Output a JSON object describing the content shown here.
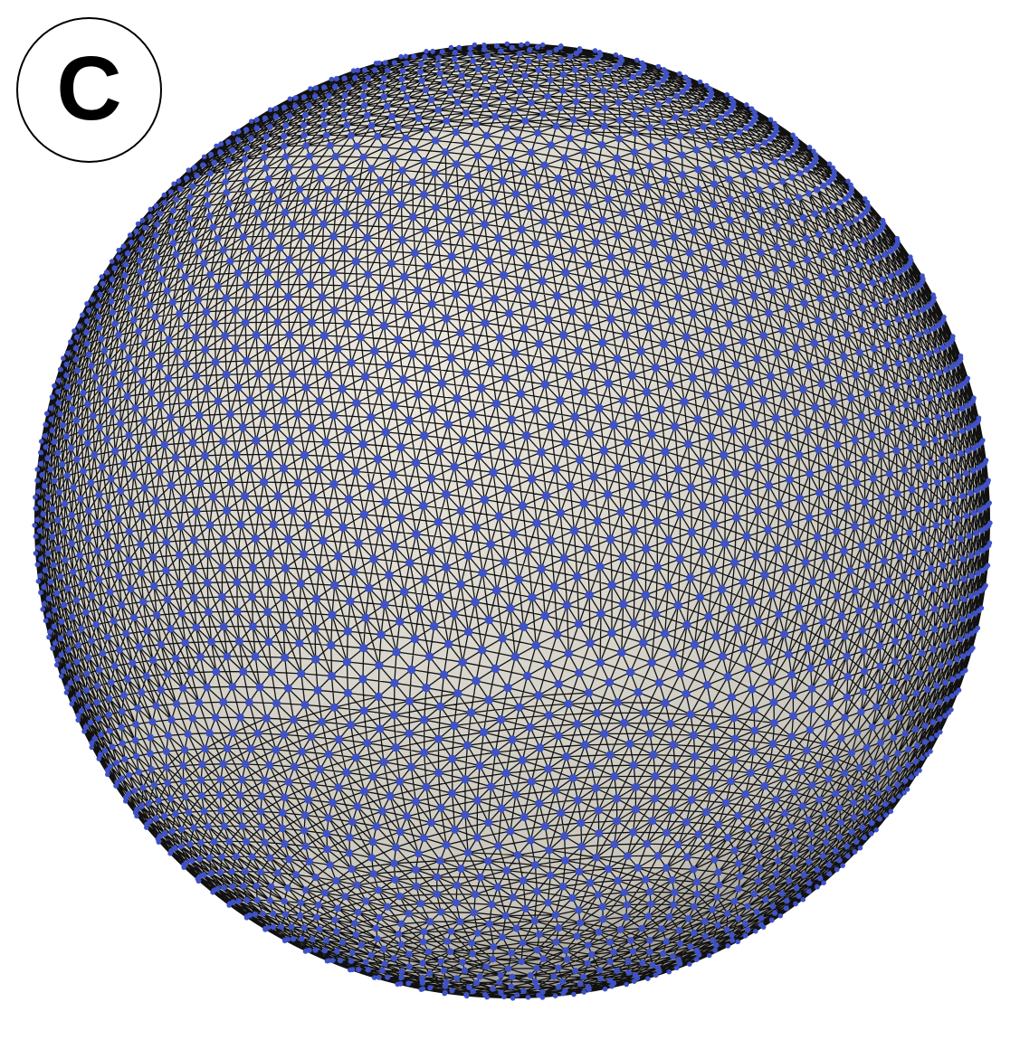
{
  "panel": {
    "label": "C"
  },
  "figure": {
    "kind": "triangulated sphere mesh",
    "colors": {
      "surface_light": "#eeeae1",
      "surface_mid": "#c9c6bd",
      "surface_dark": "#6a6965",
      "edge": "#111111",
      "vertex": "#3f52c6",
      "vertex_highlight": "#6e80e8",
      "background": "#ffffff"
    }
  }
}
